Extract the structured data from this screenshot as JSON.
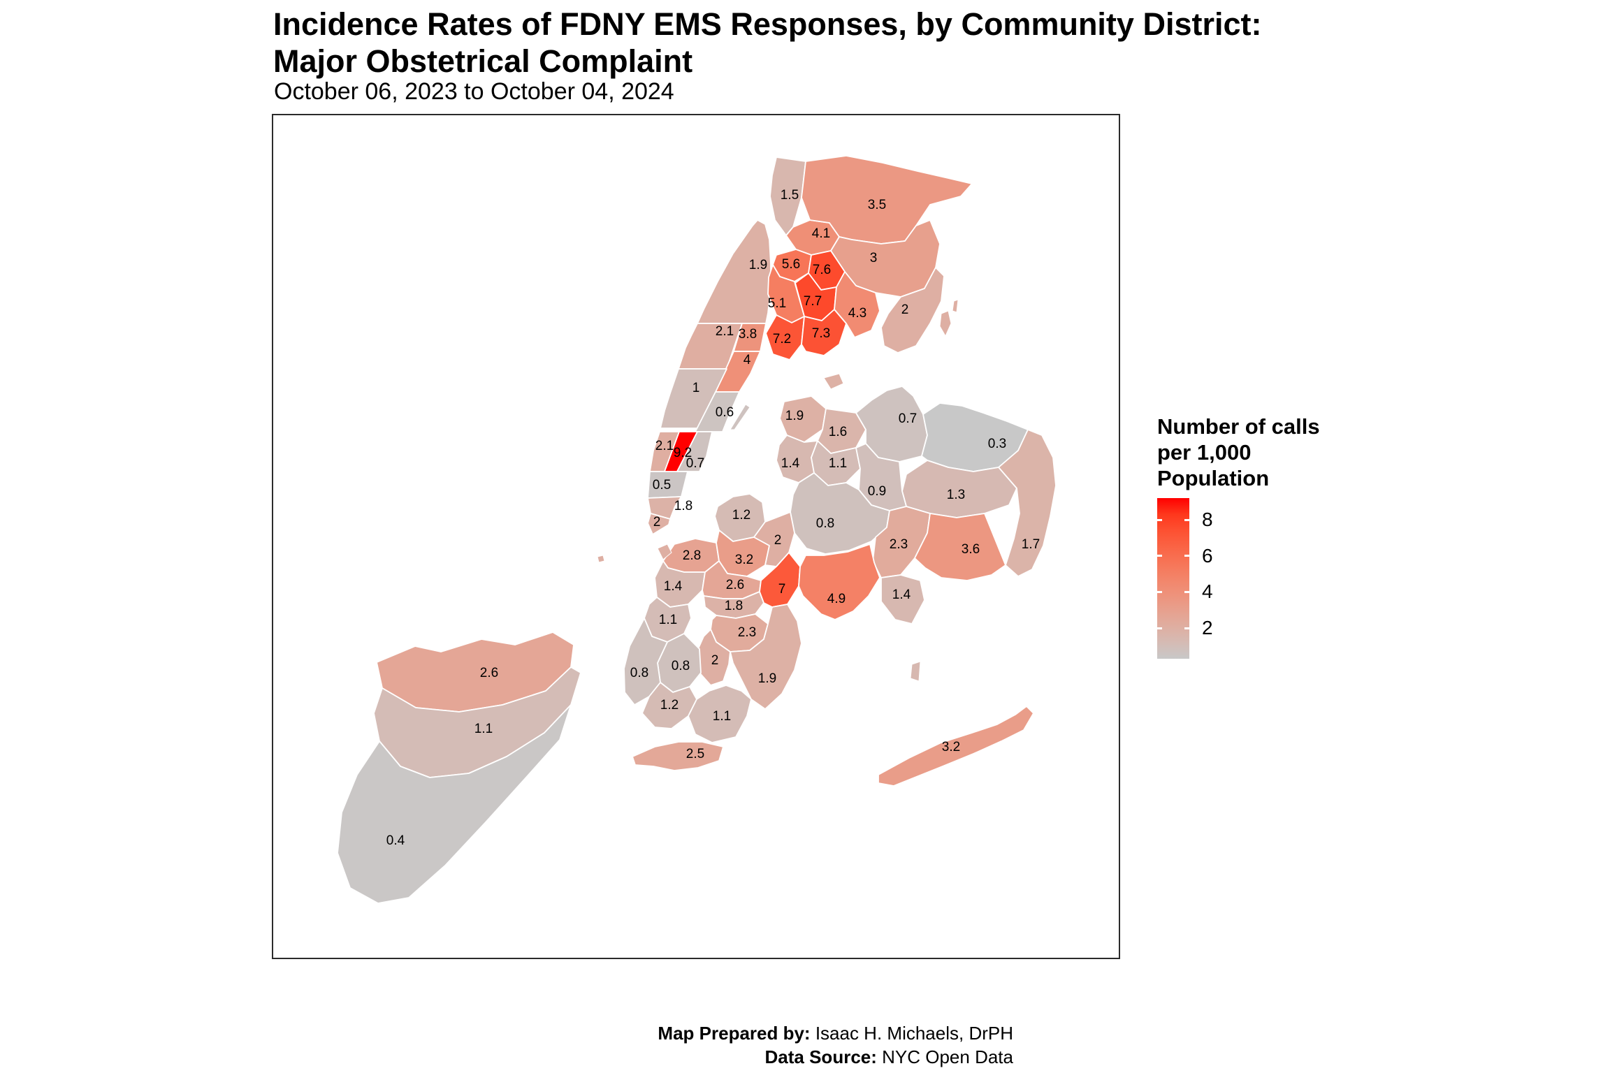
{
  "header": {
    "title_line1": "Incidence Rates of FDNY EMS Responses, by Community District:",
    "title_line2": "Major Obstetrical Complaint",
    "subtitle": "October 06, 2023 to October 04, 2024"
  },
  "legend": {
    "title_lines": [
      "Number of calls",
      "per 1,000",
      "Population"
    ],
    "tick_values": [
      8,
      6,
      4,
      2
    ],
    "tick_labels": [
      "8",
      "6",
      "4",
      "2"
    ]
  },
  "footer": {
    "prepared_by_label": "Map Prepared by:",
    "prepared_by_value": " Isaac H. Michaels, DrPH",
    "data_source_label": "Data Source:",
    "data_source_value": " NYC Open Data"
  },
  "chart_data": {
    "type": "choropleth",
    "subject": "FDNY EMS response incidence rates by New York City community district",
    "value_label": "Number of calls per 1,000 Population",
    "color_scale": {
      "low_value": 0.3,
      "high_value": 9.2,
      "low_color": "#C8C8C8",
      "high_color": "#FF0000",
      "interpolation": "lab"
    },
    "districts": [
      {
        "id": "m01",
        "label": "1.9",
        "value": 1.9
      },
      {
        "id": "m02",
        "label": "2.1",
        "value": 2.1
      },
      {
        "id": "m03",
        "label": "3.8",
        "value": 3.8
      },
      {
        "id": "m04",
        "label": "4",
        "value": 4
      },
      {
        "id": "m05",
        "label": "1",
        "value": 1
      },
      {
        "id": "m06",
        "label": "0.6",
        "value": 0.6
      },
      {
        "id": "m07",
        "label": "2.1",
        "value": 2.1
      },
      {
        "id": "m08",
        "label": "9.2",
        "value": 9.2
      },
      {
        "id": "m09",
        "label": "0.7",
        "value": 0.7
      },
      {
        "id": "m10",
        "label": "0.5",
        "value": 0.5
      },
      {
        "id": "m11",
        "label": "1.8",
        "value": 1.8
      },
      {
        "id": "m12",
        "label": "2",
        "value": 2
      },
      {
        "id": "b01",
        "label": "1.5",
        "value": 1.5
      },
      {
        "id": "b02",
        "label": "4.1",
        "value": 4.1
      },
      {
        "id": "b03",
        "label": "3.5",
        "value": 3.5
      },
      {
        "id": "b04",
        "label": "3",
        "value": 3
      },
      {
        "id": "b05",
        "label": "2",
        "value": 2
      },
      {
        "id": "b06",
        "label": "5.6",
        "value": 5.6
      },
      {
        "id": "b07",
        "label": "7.6",
        "value": 7.6
      },
      {
        "id": "b08",
        "label": "7.7",
        "value": 7.7
      },
      {
        "id": "b09",
        "label": "5.1",
        "value": 5.1
      },
      {
        "id": "b10",
        "label": "7.2",
        "value": 7.2
      },
      {
        "id": "b11",
        "label": "7.3",
        "value": 7.3
      },
      {
        "id": "b12",
        "label": "4.3",
        "value": 4.3
      },
      {
        "id": "qa",
        "label": "1.9",
        "value": 1.9
      },
      {
        "id": "qb",
        "label": "1.6",
        "value": 1.6
      },
      {
        "id": "qc",
        "label": "0.7",
        "value": 0.7
      },
      {
        "id": "qd",
        "label": "0.3",
        "value": 0.3
      },
      {
        "id": "qe",
        "label": "1.7",
        "value": 1.7
      },
      {
        "id": "qf",
        "label": "1.3",
        "value": 1.3
      },
      {
        "id": "qg",
        "label": "1.4",
        "value": 1.4
      },
      {
        "id": "qh",
        "label": "1.1",
        "value": 1.1
      },
      {
        "id": "qi",
        "label": "0.9",
        "value": 0.9
      },
      {
        "id": "qj",
        "label": "0.8",
        "value": 0.8
      },
      {
        "id": "qk",
        "label": "2.3",
        "value": 2.3
      },
      {
        "id": "ql",
        "label": "3.6",
        "value": 3.6
      },
      {
        "id": "qm",
        "label": "1.4",
        "value": 1.4
      },
      {
        "id": "qn",
        "label": "3.2",
        "value": 3.2
      },
      {
        "id": "ka",
        "label": "1.2",
        "value": 1.2
      },
      {
        "id": "kb",
        "label": "2.8",
        "value": 2.8
      },
      {
        "id": "kc",
        "label": "3.2",
        "value": 3.2
      },
      {
        "id": "kd",
        "label": "2",
        "value": 2
      },
      {
        "id": "ke",
        "label": "1.4",
        "value": 1.4
      },
      {
        "id": "kf",
        "label": "2.6",
        "value": 2.6
      },
      {
        "id": "kg",
        "label": "1.8",
        "value": 1.8
      },
      {
        "id": "kh",
        "label": "7",
        "value": 7
      },
      {
        "id": "ki",
        "label": "4.9",
        "value": 4.9
      },
      {
        "id": "kj",
        "label": "2.3",
        "value": 2.3
      },
      {
        "id": "kk",
        "label": "1.1",
        "value": 1.1
      },
      {
        "id": "kl",
        "label": "2",
        "value": 2
      },
      {
        "id": "km",
        "label": "1.9",
        "value": 1.9
      },
      {
        "id": "kn",
        "label": "0.8",
        "value": 0.8
      },
      {
        "id": "ko",
        "label": "0.8",
        "value": 0.8
      },
      {
        "id": "kp",
        "label": "1.2",
        "value": 1.2
      },
      {
        "id": "kq",
        "label": "1.1",
        "value": 1.1
      },
      {
        "id": "kr",
        "label": "2.5",
        "value": 2.5
      },
      {
        "id": "sa",
        "label": "2.6",
        "value": 2.6
      },
      {
        "id": "sb",
        "label": "1.1",
        "value": 1.1
      },
      {
        "id": "sc",
        "label": "0.4",
        "value": 0.4
      }
    ]
  }
}
